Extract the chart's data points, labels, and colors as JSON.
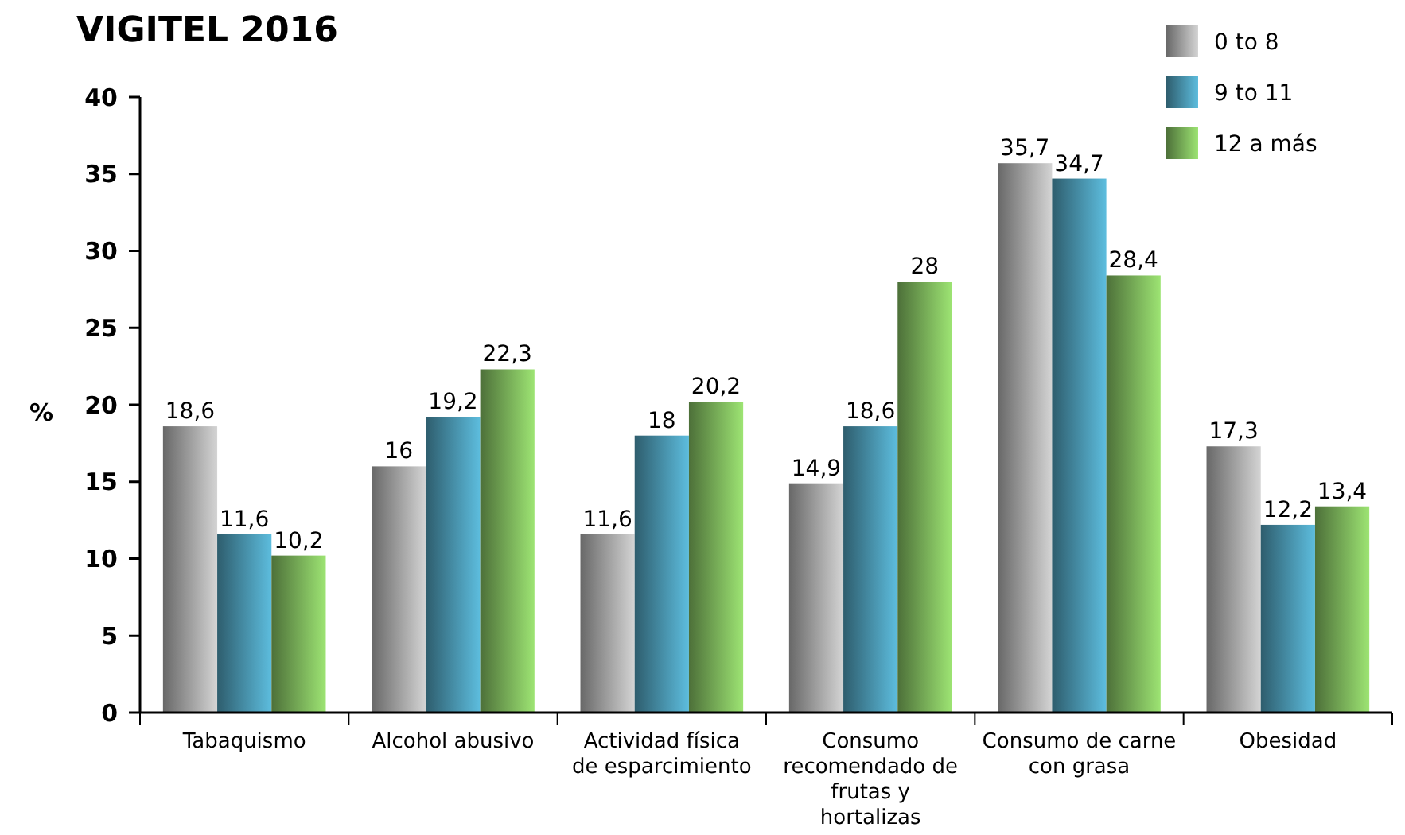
{
  "chart_data": {
    "type": "bar",
    "title": "VIGITEL 2016",
    "ylabel": "%",
    "categories": [
      "Tabaquismo",
      "Alcohol abusivo",
      "Actividad física de esparcimiento",
      "Consumo recomendado de frutas y hortalizas",
      "Consumo de carne con grasa",
      "Obesidad"
    ],
    "series": [
      {
        "name": "0 to 8",
        "color": "#8f8f8f",
        "values": [
          18.6,
          16,
          11.6,
          14.9,
          35.7,
          17.3
        ],
        "value_labels": [
          "18,6",
          "16",
          "11,6",
          "14,9",
          "35,7",
          "17,3"
        ]
      },
      {
        "name": "9 to 11",
        "color": "#3f8096",
        "values": [
          11.6,
          19.2,
          18,
          18.6,
          34.7,
          12.2
        ],
        "value_labels": [
          "11,6",
          "19,2",
          "18",
          "18,6",
          "34,7",
          "12,2"
        ]
      },
      {
        "name": "12 a más",
        "color": "#6a9a4e",
        "values": [
          10.2,
          22.3,
          20.2,
          28,
          28.4,
          13.4
        ],
        "value_labels": [
          "10,2",
          "22,3",
          "20,2",
          "28",
          "28,4",
          "13,4"
        ]
      }
    ],
    "ylim": [
      0,
      40
    ],
    "yticks": [
      0,
      5,
      10,
      15,
      20,
      25,
      30,
      35,
      40
    ],
    "legend": "top right",
    "grid": false
  }
}
